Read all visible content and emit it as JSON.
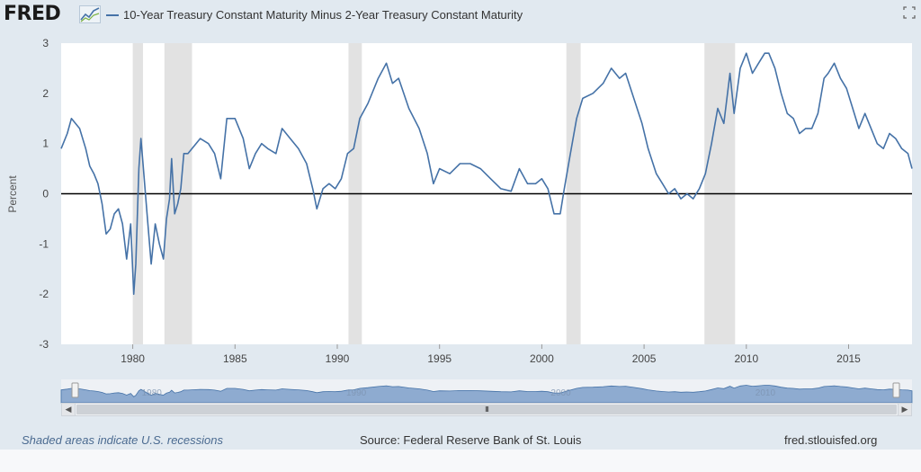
{
  "app": {
    "logo": "FRED"
  },
  "legend": {
    "label": "10-Year Treasury Constant Maturity Minus 2-Year Treasury Constant Maturity"
  },
  "footer": {
    "note": "Shaded areas indicate U.S. recessions",
    "source": "Source: Federal Reserve Bank of St. Louis",
    "link": "fred.stlouisfed.org"
  },
  "colors": {
    "series": "#4572a7",
    "recession": "#e2e2e2",
    "zero_line": "#000000"
  },
  "navigator": {
    "labels": [
      "1980",
      "1990",
      "2000",
      "2010"
    ]
  },
  "scrollbar": {
    "thumb_label": "III"
  },
  "icons": {
    "fullscreen": "fullscreen-icon",
    "logo_mark": "line-chart-icon"
  },
  "chart_data": {
    "type": "line",
    "title": "10-Year Treasury Constant Maturity Minus 2-Year Treasury Constant Maturity",
    "ylabel": "Percent",
    "xlabel": "",
    "xlim": [
      1976.5,
      2018.1
    ],
    "ylim": [
      -3,
      3
    ],
    "yticks": [
      "3",
      "2",
      "1",
      "0",
      "-1",
      "-2",
      "-3"
    ],
    "ytick_values": [
      3,
      2,
      1,
      0,
      -1,
      -2,
      -3
    ],
    "xticks": [
      "1980",
      "1985",
      "1990",
      "1995",
      "2000",
      "2005",
      "2010",
      "2015"
    ],
    "xtick_values": [
      1980,
      1985,
      1990,
      1995,
      2000,
      2005,
      2010,
      2015
    ],
    "recessions": [
      [
        1980.0,
        1980.5
      ],
      [
        1981.55,
        1982.9
      ],
      [
        1990.55,
        1991.2
      ],
      [
        2001.2,
        2001.9
      ],
      [
        2007.95,
        2009.45
      ]
    ],
    "series": [
      {
        "name": "10-Year Treasury Constant Maturity Minus 2-Year Treasury Constant Maturity",
        "x": [
          1976.5,
          1976.8,
          1977.0,
          1977.2,
          1977.4,
          1977.7,
          1977.9,
          1978.1,
          1978.3,
          1978.5,
          1978.7,
          1978.9,
          1979.1,
          1979.3,
          1979.5,
          1979.7,
          1979.9,
          1980.05,
          1980.15,
          1980.3,
          1980.4,
          1980.5,
          1980.7,
          1980.9,
          1981.1,
          1981.3,
          1981.5,
          1981.65,
          1981.8,
          1981.9,
          1982.05,
          1982.2,
          1982.35,
          1982.5,
          1982.7,
          1982.9,
          1983.3,
          1983.7,
          1984.0,
          1984.3,
          1984.6,
          1985.0,
          1985.4,
          1985.7,
          1986.0,
          1986.3,
          1986.6,
          1987.0,
          1987.3,
          1987.7,
          1988.1,
          1988.5,
          1988.8,
          1989.0,
          1989.3,
          1989.6,
          1989.9,
          1990.2,
          1990.5,
          1990.8,
          1991.1,
          1991.5,
          1992.0,
          1992.4,
          1992.7,
          1993.0,
          1993.5,
          1994.0,
          1994.4,
          1994.7,
          1995.0,
          1995.5,
          1996.0,
          1996.5,
          1997.0,
          1997.5,
          1998.0,
          1998.5,
          1998.9,
          1999.3,
          1999.7,
          2000.0,
          2000.3,
          2000.6,
          2000.9,
          2001.1,
          2001.4,
          2001.7,
          2002.0,
          2002.5,
          2003.0,
          2003.4,
          2003.8,
          2004.1,
          2004.5,
          2004.9,
          2005.2,
          2005.6,
          2005.9,
          2006.2,
          2006.5,
          2006.8,
          2007.1,
          2007.4,
          2007.7,
          2008.0,
          2008.3,
          2008.6,
          2008.9,
          2009.2,
          2009.4,
          2009.7,
          2010.0,
          2010.3,
          2010.6,
          2010.9,
          2011.1,
          2011.4,
          2011.7,
          2012.0,
          2012.3,
          2012.6,
          2012.9,
          2013.2,
          2013.5,
          2013.8,
          2014.0,
          2014.3,
          2014.6,
          2014.9,
          2015.2,
          2015.5,
          2015.8,
          2016.1,
          2016.4,
          2016.7,
          2017.0,
          2017.3,
          2017.6,
          2017.9,
          2018.1
        ],
        "values": [
          0.9,
          1.2,
          1.5,
          1.4,
          1.3,
          0.9,
          0.55,
          0.4,
          0.2,
          -0.2,
          -0.8,
          -0.7,
          -0.4,
          -0.3,
          -0.6,
          -1.3,
          -0.6,
          -2.0,
          -1.4,
          0.5,
          1.1,
          0.6,
          -0.4,
          -1.4,
          -0.6,
          -1.0,
          -1.3,
          -0.5,
          -0.1,
          0.7,
          -0.4,
          -0.2,
          0.1,
          0.8,
          0.8,
          0.9,
          1.1,
          1.0,
          0.8,
          0.3,
          1.5,
          1.5,
          1.1,
          0.5,
          0.8,
          1.0,
          0.9,
          0.8,
          1.3,
          1.1,
          0.9,
          0.6,
          0.1,
          -0.3,
          0.1,
          0.2,
          0.1,
          0.3,
          0.8,
          0.9,
          1.5,
          1.8,
          2.3,
          2.6,
          2.2,
          2.3,
          1.7,
          1.3,
          0.8,
          0.2,
          0.5,
          0.4,
          0.6,
          0.6,
          0.5,
          0.3,
          0.1,
          0.05,
          0.5,
          0.2,
          0.2,
          0.3,
          0.1,
          -0.4,
          -0.4,
          0.1,
          0.8,
          1.5,
          1.9,
          2.0,
          2.2,
          2.5,
          2.3,
          2.4,
          1.9,
          1.4,
          0.9,
          0.4,
          0.2,
          0.0,
          0.1,
          -0.1,
          0.0,
          -0.1,
          0.1,
          0.4,
          1.0,
          1.7,
          1.4,
          2.4,
          1.6,
          2.5,
          2.8,
          2.4,
          2.6,
          2.8,
          2.8,
          2.5,
          2.0,
          1.6,
          1.5,
          1.2,
          1.3,
          1.3,
          1.6,
          2.3,
          2.4,
          2.6,
          2.3,
          2.1,
          1.7,
          1.3,
          1.6,
          1.3,
          1.0,
          0.9,
          1.2,
          1.1,
          0.9,
          0.8,
          0.5
        ]
      }
    ]
  }
}
